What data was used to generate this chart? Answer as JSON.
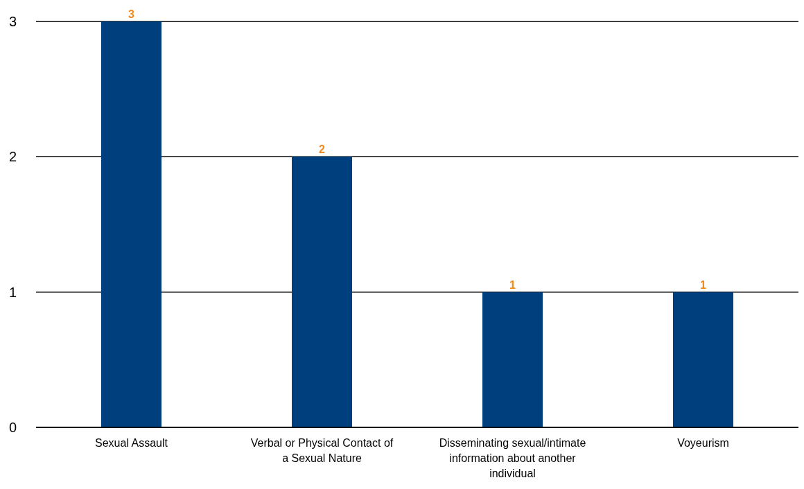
{
  "chart_data": {
    "type": "bar",
    "categories": [
      "Sexual Assault",
      "Verbal or Physical Contact of a Sexual Nature",
      "Disseminating sexual/intimate information about another individual",
      "Voyeurism"
    ],
    "values": [
      3,
      2,
      1,
      1
    ],
    "color": "#003f7d",
    "ylim": [
      0,
      3
    ],
    "yticks": [
      0,
      1,
      2,
      3
    ],
    "grid": "y",
    "data_labels": true,
    "legend": false
  }
}
